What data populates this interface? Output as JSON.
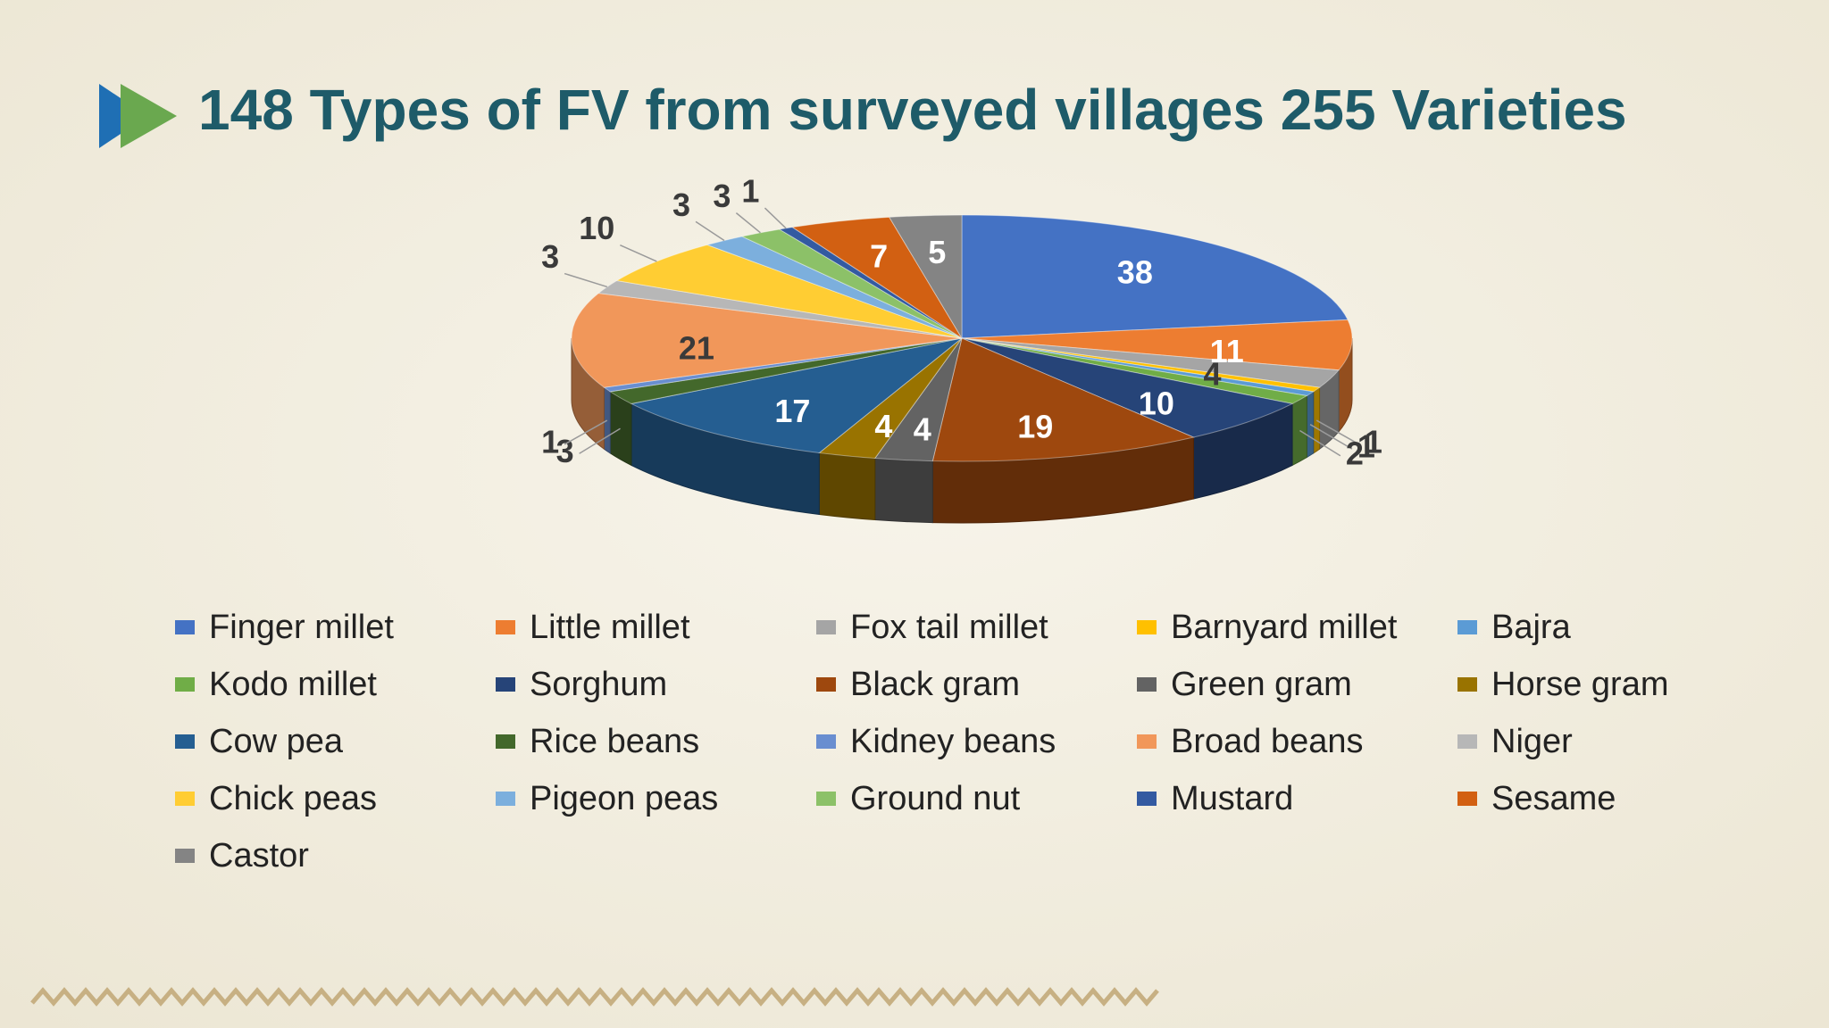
{
  "chart_data": {
    "type": "pie",
    "title": "148 Types of FV from surveyed villages 255 Varieties",
    "series": [
      {
        "name": "Finger millet",
        "color": "#4472c4",
        "value": 38
      },
      {
        "name": "Little millet",
        "color": "#ed7d31",
        "value": 11
      },
      {
        "name": "Fox tail millet",
        "color": "#a5a5a5",
        "value": 4
      },
      {
        "name": "Barnyard millet",
        "color": "#ffc000",
        "value": 1
      },
      {
        "name": "Bajra",
        "color": "#5b9bd5",
        "value": 1
      },
      {
        "name": "Kodo millet",
        "color": "#70ad47",
        "value": 2
      },
      {
        "name": "Sorghum",
        "color": "#264478",
        "value": 10
      },
      {
        "name": "Black gram",
        "color": "#9e480e",
        "value": 19
      },
      {
        "name": "Green gram",
        "color": "#636363",
        "value": 4
      },
      {
        "name": "Horse gram",
        "color": "#997300",
        "value": 4
      },
      {
        "name": "Cow pea",
        "color": "#255e91",
        "value": 17
      },
      {
        "name": "Rice beans",
        "color": "#43682b",
        "value": 3
      },
      {
        "name": "Kidney beans",
        "color": "#698ed0",
        "value": 1
      },
      {
        "name": "Broad beans",
        "color": "#f1975a",
        "value": 21
      },
      {
        "name": "Niger",
        "color": "#b7b7b7",
        "value": 3
      },
      {
        "name": "Chick peas",
        "color": "#ffcd33",
        "value": 10
      },
      {
        "name": "Pigeon peas",
        "color": "#7cafdd",
        "value": 3
      },
      {
        "name": "Ground nut",
        "color": "#8cc168",
        "value": 3
      },
      {
        "name": "Mustard",
        "color": "#335aa1",
        "value": 1
      },
      {
        "name": "Sesame",
        "color": "#d26012",
        "value": 7
      },
      {
        "name": "Castor",
        "color": "#848484",
        "value": 5
      }
    ]
  }
}
